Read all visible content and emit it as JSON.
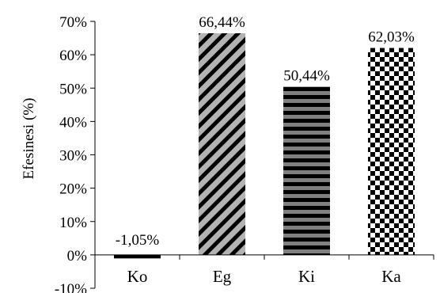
{
  "chart_data": {
    "type": "bar",
    "title": "",
    "xlabel": "",
    "ylabel": "Efesinesi (%)",
    "categories": [
      "Ko",
      "Eg",
      "Ki",
      "Ka"
    ],
    "values": [
      -1.05,
      66.44,
      50.44,
      62.03
    ],
    "data_labels": [
      "-1,05%",
      "66,44%",
      "50,44%",
      "62,03%"
    ],
    "ylim": [
      -10,
      70
    ],
    "yticks": [
      -10,
      0,
      10,
      20,
      30,
      40,
      50,
      60,
      70
    ],
    "ytick_labels": [
      "-10%",
      "0%",
      "10%",
      "20%",
      "30%",
      "40%",
      "50%",
      "60%",
      "70%"
    ],
    "patterns": [
      "solid",
      "diagonal-stripes",
      "horizontal-stripes",
      "checkerboard"
    ],
    "colors": {
      "bar_dark": "#000000",
      "bar_light": "#b3b3b3",
      "axis": "#000000"
    },
    "grid": false,
    "legend": "none"
  }
}
